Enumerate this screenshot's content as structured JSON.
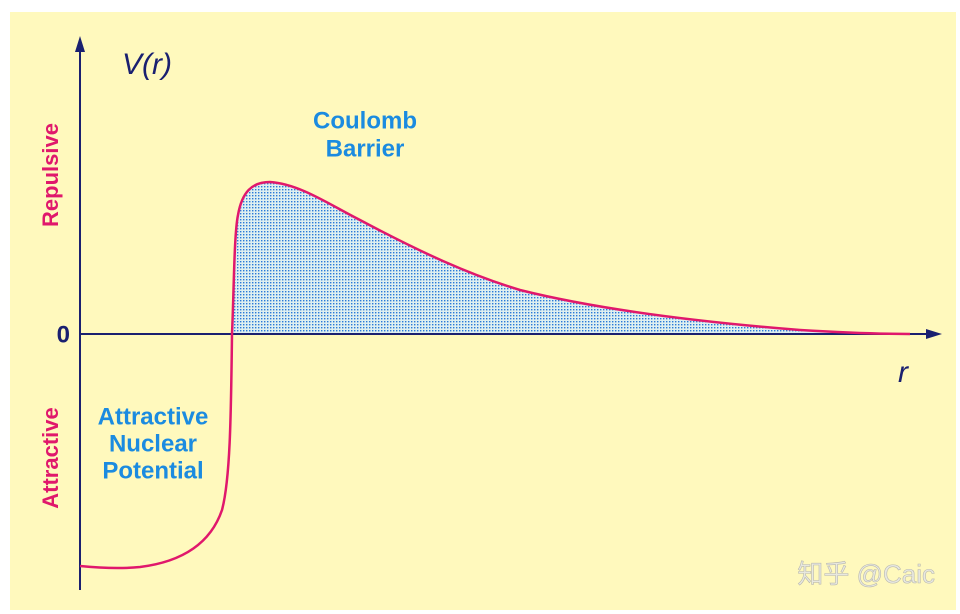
{
  "axes": {
    "y_label": "V(r)",
    "x_label": "r",
    "zero": "0",
    "upper_side": "Repulsive",
    "lower_side": "Attractive"
  },
  "regions": {
    "barrier": [
      "Coulomb",
      "Barrier"
    ],
    "well": [
      "Attractive",
      "Nuclear",
      "Potential"
    ]
  },
  "watermark": "知乎 @Caic"
}
